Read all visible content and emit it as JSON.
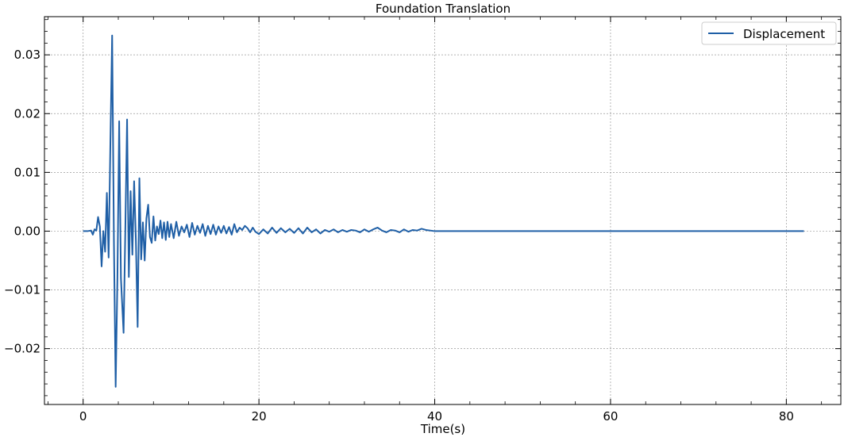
{
  "chart_data": {
    "type": "line",
    "title": "Foundation Translation",
    "xlabel": "Time(s)",
    "ylabel": "",
    "xlim": [
      -4.4,
      86.2
    ],
    "ylim": [
      -0.0295,
      0.0365
    ],
    "xticks": [
      0,
      20,
      40,
      60,
      80
    ],
    "yticks": [
      -0.02,
      -0.01,
      0.0,
      0.01,
      0.02,
      0.03
    ],
    "xtick_labels": [
      "0",
      "20",
      "40",
      "60",
      "80"
    ],
    "ytick_labels": [
      "−0.02",
      "−0.01",
      "0.00",
      "0.01",
      "0.02",
      "0.03"
    ],
    "grid": true,
    "legend_position": "top-right",
    "series": [
      {
        "name": "Displacement",
        "color": "#1f5fa6",
        "x": [
          0.0,
          0.5,
          0.9,
          1.1,
          1.3,
          1.5,
          1.7,
          1.9,
          2.1,
          2.3,
          2.5,
          2.7,
          2.9,
          3.1,
          3.3,
          3.5,
          3.7,
          3.9,
          4.1,
          4.3,
          4.6,
          4.8,
          5.0,
          5.2,
          5.4,
          5.6,
          5.8,
          6.0,
          6.2,
          6.4,
          6.6,
          6.8,
          7.0,
          7.2,
          7.4,
          7.6,
          7.8,
          8.0,
          8.2,
          8.4,
          8.6,
          8.8,
          9.0,
          9.2,
          9.4,
          9.6,
          9.8,
          10.0,
          10.3,
          10.6,
          10.9,
          11.2,
          11.5,
          11.8,
          12.1,
          12.4,
          12.7,
          13.0,
          13.3,
          13.6,
          13.9,
          14.2,
          14.5,
          14.8,
          15.1,
          15.4,
          15.7,
          16.0,
          16.3,
          16.6,
          16.9,
          17.2,
          17.5,
          17.8,
          18.1,
          18.4,
          18.7,
          19.0,
          19.3,
          19.6,
          20.0,
          20.5,
          21.0,
          21.5,
          22.0,
          22.5,
          23.0,
          23.5,
          24.0,
          24.5,
          25.0,
          25.5,
          26.0,
          26.5,
          27.0,
          27.5,
          28.0,
          28.5,
          29.0,
          29.5,
          30.0,
          30.5,
          31.0,
          31.5,
          32.0,
          32.5,
          33.0,
          33.5,
          34.0,
          34.5,
          35.0,
          35.5,
          36.0,
          36.5,
          37.0,
          37.5,
          38.0,
          38.5,
          39.0,
          39.5,
          40.0,
          50.0,
          60.0,
          70.0,
          80.0,
          82.0
        ],
        "y": [
          0.0,
          0.0,
          0.0001,
          -0.0006,
          0.0003,
          0.0001,
          0.0024,
          0.0008,
          -0.006,
          0.0,
          -0.0035,
          0.0065,
          -0.0045,
          0.015,
          0.0333,
          -0.0015,
          -0.0265,
          -0.008,
          0.0187,
          -0.008,
          -0.0173,
          0.0003,
          0.019,
          -0.0078,
          0.0068,
          -0.004,
          0.0085,
          -0.0015,
          -0.0163,
          0.009,
          -0.0048,
          0.0015,
          -0.005,
          0.0022,
          0.0045,
          -0.001,
          -0.002,
          0.0025,
          -0.0016,
          0.0008,
          -0.0005,
          0.0018,
          -0.0012,
          0.0015,
          -0.0015,
          0.0016,
          -0.001,
          0.0012,
          -0.0012,
          0.0016,
          -0.0008,
          0.0008,
          -0.0002,
          0.0011,
          -0.001,
          0.0014,
          -0.0006,
          0.0009,
          -0.0003,
          0.0012,
          -0.0008,
          0.0009,
          -0.0005,
          0.0011,
          -0.0006,
          0.0008,
          -0.0003,
          0.0009,
          -0.0004,
          0.0007,
          -0.0006,
          0.0012,
          -0.0002,
          0.0006,
          0.0002,
          0.0009,
          0.0005,
          -0.0002,
          0.0006,
          -0.0001,
          -0.0005,
          0.0003,
          -0.0004,
          0.0006,
          -0.0003,
          0.0005,
          -0.0002,
          0.0004,
          -0.0003,
          0.0005,
          -0.0004,
          0.0006,
          -0.0002,
          0.0003,
          -0.0004,
          0.0002,
          -0.0001,
          0.0003,
          -0.0002,
          0.0002,
          -0.0001,
          0.0002,
          0.0001,
          -0.0002,
          0.0003,
          -0.0001,
          0.0003,
          0.0006,
          0.0001,
          -0.0002,
          0.0002,
          0.0001,
          -0.0002,
          0.0003,
          -0.0001,
          0.0002,
          0.0001,
          0.0004,
          0.0002,
          0.0001,
          0.0,
          0.0,
          0.0,
          0.0,
          0.0,
          0.0
        ]
      }
    ]
  }
}
